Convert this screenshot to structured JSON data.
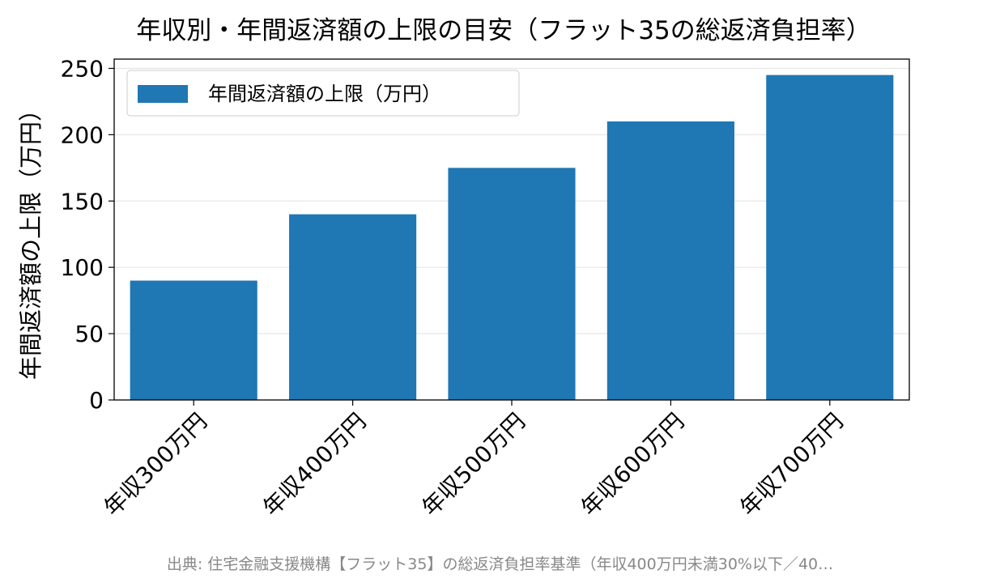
{
  "source_note": "出典: 住宅金融支援機構【フラット35】の総返済負担率基準（年収400万円未満30%以下／40…",
  "colors": {
    "bar": "#1f77b4",
    "grid": "#e6e6e6",
    "axis": "#000000"
  },
  "chart_data": {
    "type": "bar",
    "title": "年収別・年間返済額の上限の目安（フラット35の総返済負担率）",
    "xlabel": "",
    "ylabel": "年間返済額の上限（万円）",
    "categories": [
      "年収300万円",
      "年収400万円",
      "年収500万円",
      "年収600万円",
      "年収700万円"
    ],
    "series": [
      {
        "name": "年間返済額の上限（万円）",
        "values": [
          90,
          140,
          175,
          210,
          245
        ]
      }
    ],
    "ylim": [
      0,
      257
    ],
    "yticks": [
      0,
      50,
      100,
      150,
      200,
      250
    ],
    "grid": "y",
    "legend": "top-left",
    "x_tick_rotation": -45
  }
}
